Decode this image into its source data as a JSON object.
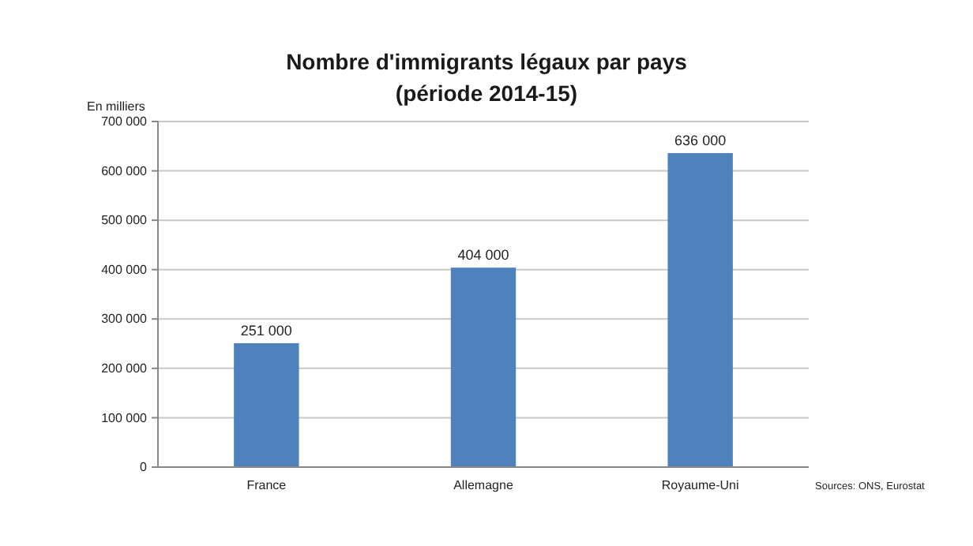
{
  "chart_data": {
    "type": "bar",
    "title": "Nombre d'immigrants légaux par pays",
    "subtitle": "(période 2014-15)",
    "ylabel": "En milliers",
    "annotations": [
      "Sources: ONS, Eurostat"
    ],
    "categories": [
      "France",
      "Allemagne",
      "Royaume-Uni"
    ],
    "values": [
      251000,
      404000,
      636000
    ],
    "color": "#4f81bd",
    "value_labels": [
      "251 000",
      "404 000",
      "636 000"
    ],
    "ylim": [
      0,
      700000
    ],
    "yticks": [
      0,
      {
        "value": 100000,
        "label": "100 000"
      },
      {
        "value": 200000,
        "label": "200 000"
      },
      {
        "value": 300000,
        "label": "300 000"
      },
      {
        "value": 400000,
        "label": "400 000"
      },
      {
        "value": 500000,
        "label": "500 000"
      },
      {
        "value": 600000,
        "label": "600 000"
      },
      {
        "value": 700000,
        "label": "700 000"
      }
    ],
    "grid": "y"
  }
}
